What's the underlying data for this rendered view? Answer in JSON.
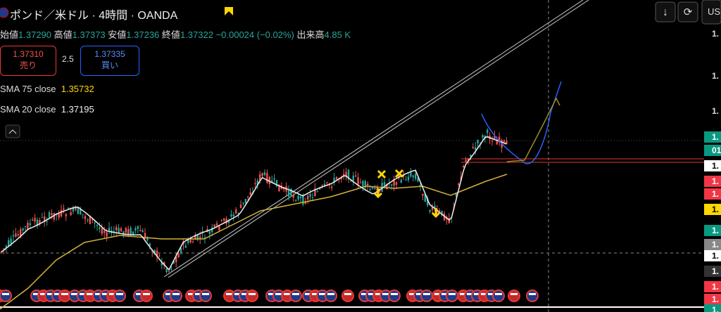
{
  "header": {
    "symbol": "ポンド／米ドル · 4時間 · OANDA"
  },
  "ohlc": {
    "open_label": "始値",
    "open": "1.37290",
    "high_label": "高値",
    "high": "1.37373",
    "low_label": "安値",
    "low": "1.37236",
    "close_label": "終値",
    "close": "1.37322",
    "change": "−0.00024 (−0.02%)",
    "volume_label": "出来高",
    "volume": "4.85 K"
  },
  "trade": {
    "sell_price": "1.37310",
    "sell_label": "売り",
    "spread": "2.5",
    "buy_price": "1.37335",
    "buy_label": "買い"
  },
  "indicators": [
    {
      "name": "SMA 75 close",
      "value": "1.35732"
    },
    {
      "name": "SMA 20 close",
      "value": "1.37195"
    }
  ],
  "toolbar": {
    "currency": "US"
  },
  "price_scale": [
    "1.",
    "1.",
    "1.",
    "1.",
    "01",
    "1.",
    "1.",
    "1.",
    "1.",
    "1.",
    "1.",
    "1.",
    "1.",
    "1.",
    "1.",
    "1."
  ]
}
